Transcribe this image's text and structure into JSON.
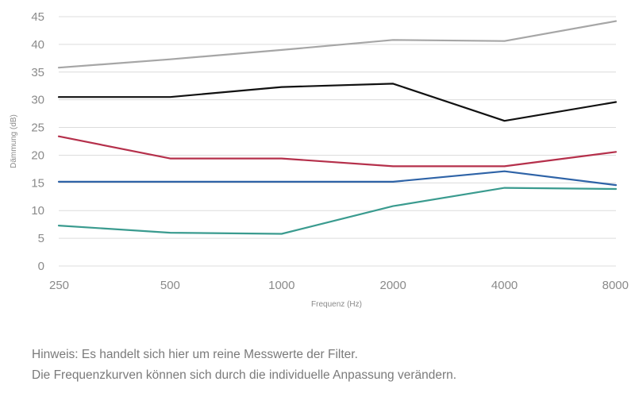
{
  "chart_data": {
    "type": "line",
    "title": "",
    "xlabel": "Frequenz (Hz)",
    "ylabel": "Dämmung (dB)",
    "categories": [
      "250",
      "500",
      "1000",
      "2000",
      "4000",
      "8000"
    ],
    "ylim": [
      0,
      45
    ],
    "yticks": [
      0,
      5,
      10,
      15,
      20,
      25,
      30,
      35,
      40,
      45
    ],
    "grid": "horizontal",
    "legend": "none",
    "series": [
      {
        "color": "#a6a6a6",
        "values": [
          35.8,
          37.3,
          39.0,
          40.8,
          40.6,
          44.2
        ]
      },
      {
        "color": "#111111",
        "values": [
          30.5,
          30.5,
          32.3,
          32.9,
          26.2,
          29.6
        ]
      },
      {
        "color": "#b5304b",
        "values": [
          23.4,
          19.4,
          19.4,
          18.0,
          18.0,
          20.6
        ]
      },
      {
        "color": "#2e63a7",
        "values": [
          15.2,
          15.2,
          15.2,
          15.2,
          17.1,
          14.6
        ]
      },
      {
        "color": "#3a9b8f",
        "values": [
          7.3,
          6.0,
          5.8,
          10.8,
          14.1,
          13.9
        ]
      }
    ]
  },
  "notes": {
    "line1": "Hinweis: Es handelt sich hier um reine Messwerte der Filter.",
    "line2": "Die Frequenzkurven können sich durch die individuelle Anpassung verändern."
  }
}
